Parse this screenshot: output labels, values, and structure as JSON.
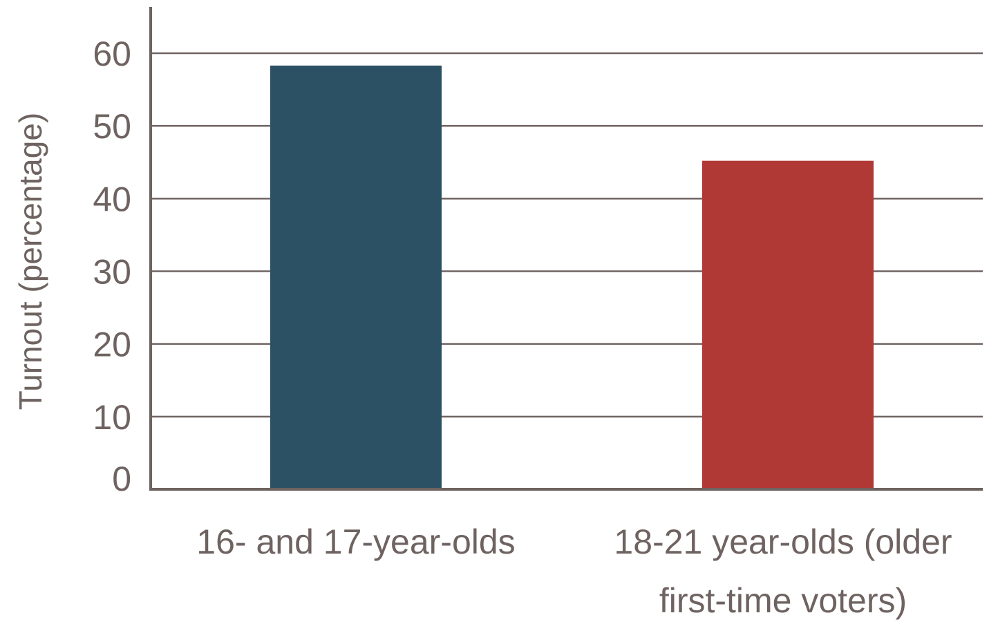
{
  "chart_data": {
    "type": "bar",
    "categories": [
      "16- and 17-year-olds",
      "18-21 year-olds (older first-time voters)"
    ],
    "category_lines": [
      [
        "16- and 17-year-olds"
      ],
      [
        "18-21 year-olds (older",
        "first-time voters)"
      ]
    ],
    "values": [
      58.3,
      45.2
    ],
    "bar_colors": [
      "#2d5164",
      "#b03835"
    ],
    "title": "",
    "xlabel": "",
    "ylabel": "Turnout (percentage)",
    "ylim": [
      0,
      60
    ],
    "yticks": [
      0,
      10,
      20,
      30,
      40,
      50,
      60
    ],
    "grid": true,
    "legend": "none"
  },
  "colors": {
    "axis": "#6e6360",
    "grid": "#6e6360",
    "text": "#6e6360"
  }
}
